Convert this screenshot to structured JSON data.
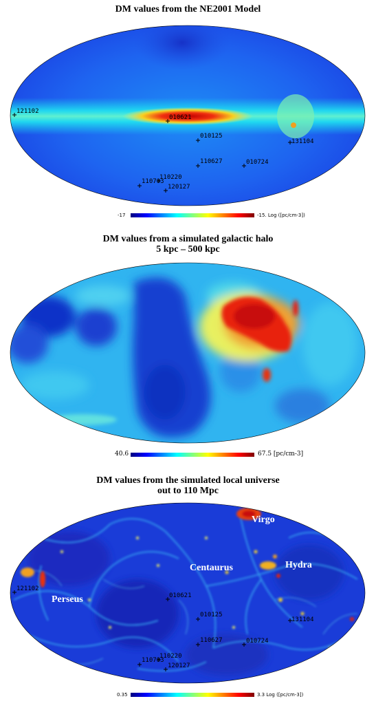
{
  "panels": [
    {
      "title": "DM values from the NE2001 Model",
      "colorbar": {
        "min": "-17",
        "max": "-15. Log ([pc/cm-3])"
      },
      "markers": [
        "121102",
        "010621",
        "010125",
        "131104",
        "110627",
        "010724",
        "110220",
        "110703",
        "120127"
      ]
    },
    {
      "title_line1": "DM values from a simulated galactic halo",
      "title_line2": "5 kpc – 500 kpc",
      "colorbar": {
        "min": "40.6",
        "max": "67.5 [pc/cm-3]"
      }
    },
    {
      "title_line1": "DM values from the simulated local universe",
      "title_line2": "out to 110 Mpc",
      "colorbar": {
        "min": "0.35",
        "max": "3.3 Log ([pc/cm-3])"
      },
      "markers": [
        "121102",
        "010621",
        "010125",
        "131104",
        "110627",
        "010724",
        "110220",
        "110703",
        "120127"
      ],
      "regions": [
        "Virgo",
        "Centaurus",
        "Hydra",
        "Perseus"
      ]
    }
  ],
  "colors": {
    "low": "#0a14c8",
    "mid_low": "#0aa0f0",
    "mid": "#40e0e8",
    "mid_high": "#f0f050",
    "high": "#e01010"
  }
}
